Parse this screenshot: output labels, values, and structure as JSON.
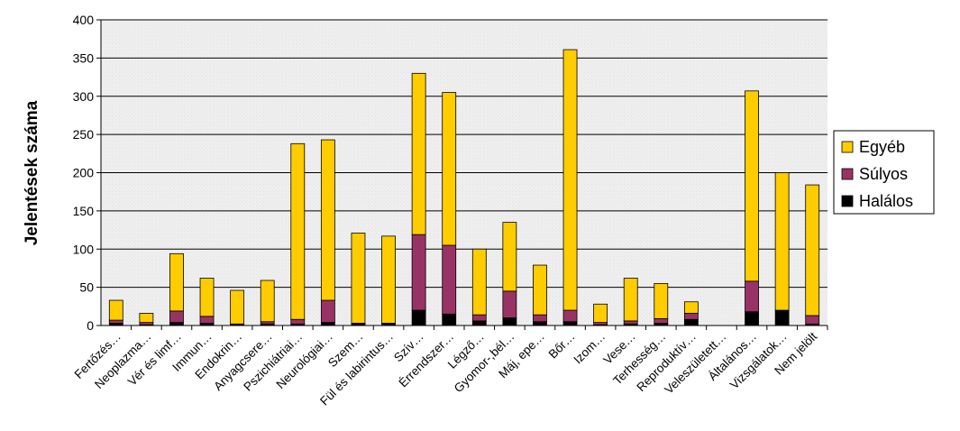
{
  "chart_data": {
    "type": "bar",
    "stacked": true,
    "title": "",
    "xlabel": "",
    "ylabel": "Jelentések száma",
    "ylim": [
      0,
      400
    ],
    "yticks": [
      0,
      50,
      100,
      150,
      200,
      250,
      300,
      350,
      400
    ],
    "grid": true,
    "legend_position": "right",
    "categories": [
      "Fertőzés…",
      "Neoplazma…",
      "Vér és limf…",
      "Immun…",
      "Endokrin…",
      "Anyagcsere…",
      "Pszichiátriai…",
      "Neurológiai…",
      "Szem…",
      "Fül és labirintus…",
      "Szív…",
      "Érrendszer…",
      "Légző…",
      "Gyomor-,bél…",
      "Máj, epe…",
      "Bőr…",
      "Izom…",
      "Vese…",
      "Terhesség…",
      "Reproduktív…",
      "Veleszületett…",
      "Általános…",
      "Vizsgálatok…",
      "Nem jelölt"
    ],
    "series": [
      {
        "name": "Halálos",
        "color": "#000000",
        "values": [
          3,
          1,
          4,
          3,
          1,
          2,
          2,
          4,
          2,
          2,
          20,
          15,
          6,
          10,
          5,
          5,
          1,
          2,
          3,
          8,
          0,
          18,
          20,
          2
        ]
      },
      {
        "name": "Súlyos",
        "color": "#993366",
        "values": [
          4,
          3,
          15,
          9,
          1,
          3,
          6,
          29,
          1,
          1,
          99,
          90,
          8,
          35,
          9,
          15,
          3,
          4,
          6,
          8,
          0,
          40,
          0,
          11
        ]
      },
      {
        "name": "Egyéb",
        "color": "#FFCC00",
        "values": [
          26,
          12,
          75,
          50,
          44,
          54,
          230,
          210,
          118,
          114,
          211,
          200,
          86,
          90,
          65,
          341,
          24,
          56,
          46,
          15,
          0,
          249,
          180,
          171
        ]
      }
    ],
    "legend_order": [
      "Egyéb",
      "Súlyos",
      "Halálos"
    ],
    "plot_background": "#EFEFEF",
    "grid_color": "#000000"
  }
}
